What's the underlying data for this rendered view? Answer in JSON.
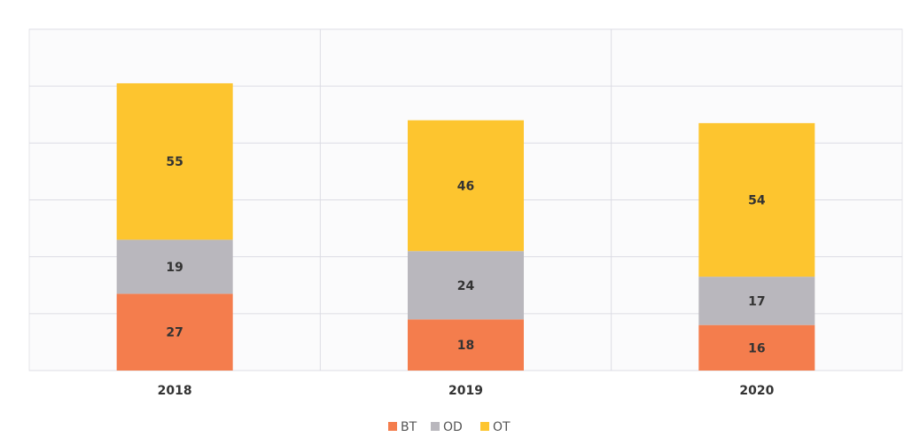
{
  "chart_data": {
    "type": "stacked_bar",
    "categories": [
      "2018",
      "2019",
      "2020"
    ],
    "series": [
      {
        "name": "BT",
        "color": "#f47d4d",
        "values": [
          27,
          18,
          16
        ]
      },
      {
        "name": "OD",
        "color": "#b9b7bd",
        "values": [
          19,
          24,
          17
        ]
      },
      {
        "name": "OT",
        "color": "#fdc52f",
        "values": [
          55,
          46,
          54
        ]
      }
    ],
    "ylim": [
      0,
      120
    ],
    "yticks": [
      0,
      20,
      40,
      60,
      80,
      100,
      120
    ],
    "grid": true
  }
}
